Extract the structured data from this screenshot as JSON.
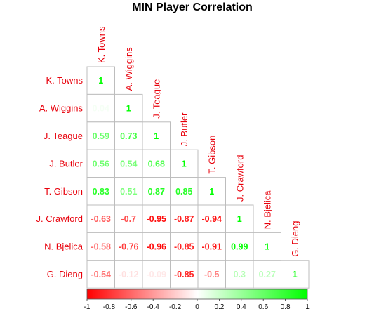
{
  "chart_data": {
    "type": "heatmap",
    "title": "MIN Player Correlation",
    "players": [
      "K. Towns",
      "A. Wiggins",
      "J. Teague",
      "J. Butler",
      "T. Gibson",
      "J. Crawford",
      "N. Bjelica",
      "G. Dieng"
    ],
    "matrix": [
      [
        1
      ],
      [
        0.04,
        1
      ],
      [
        0.59,
        0.73,
        1
      ],
      [
        0.56,
        0.54,
        0.68,
        1
      ],
      [
        0.83,
        0.51,
        0.87,
        0.85,
        1
      ],
      [
        -0.63,
        -0.7,
        -0.95,
        -0.87,
        -0.94,
        1
      ],
      [
        -0.58,
        -0.76,
        -0.96,
        -0.85,
        -0.91,
        0.99,
        1
      ],
      [
        -0.54,
        -0.12,
        -0.09,
        -0.85,
        -0.5,
        0.3,
        0.27,
        1
      ]
    ],
    "color_scale": {
      "range": [
        -1,
        1
      ],
      "low_color": "#ff0000",
      "mid_color": "#ffffff",
      "high_color": "#00ff00",
      "ticks": [
        "-1",
        "-0.8",
        "-0.6",
        "-0.4",
        "-0.2",
        "0",
        "0.2",
        "0.4",
        "0.6",
        "0.8",
        "1"
      ]
    },
    "label_color": "#e8000b"
  }
}
